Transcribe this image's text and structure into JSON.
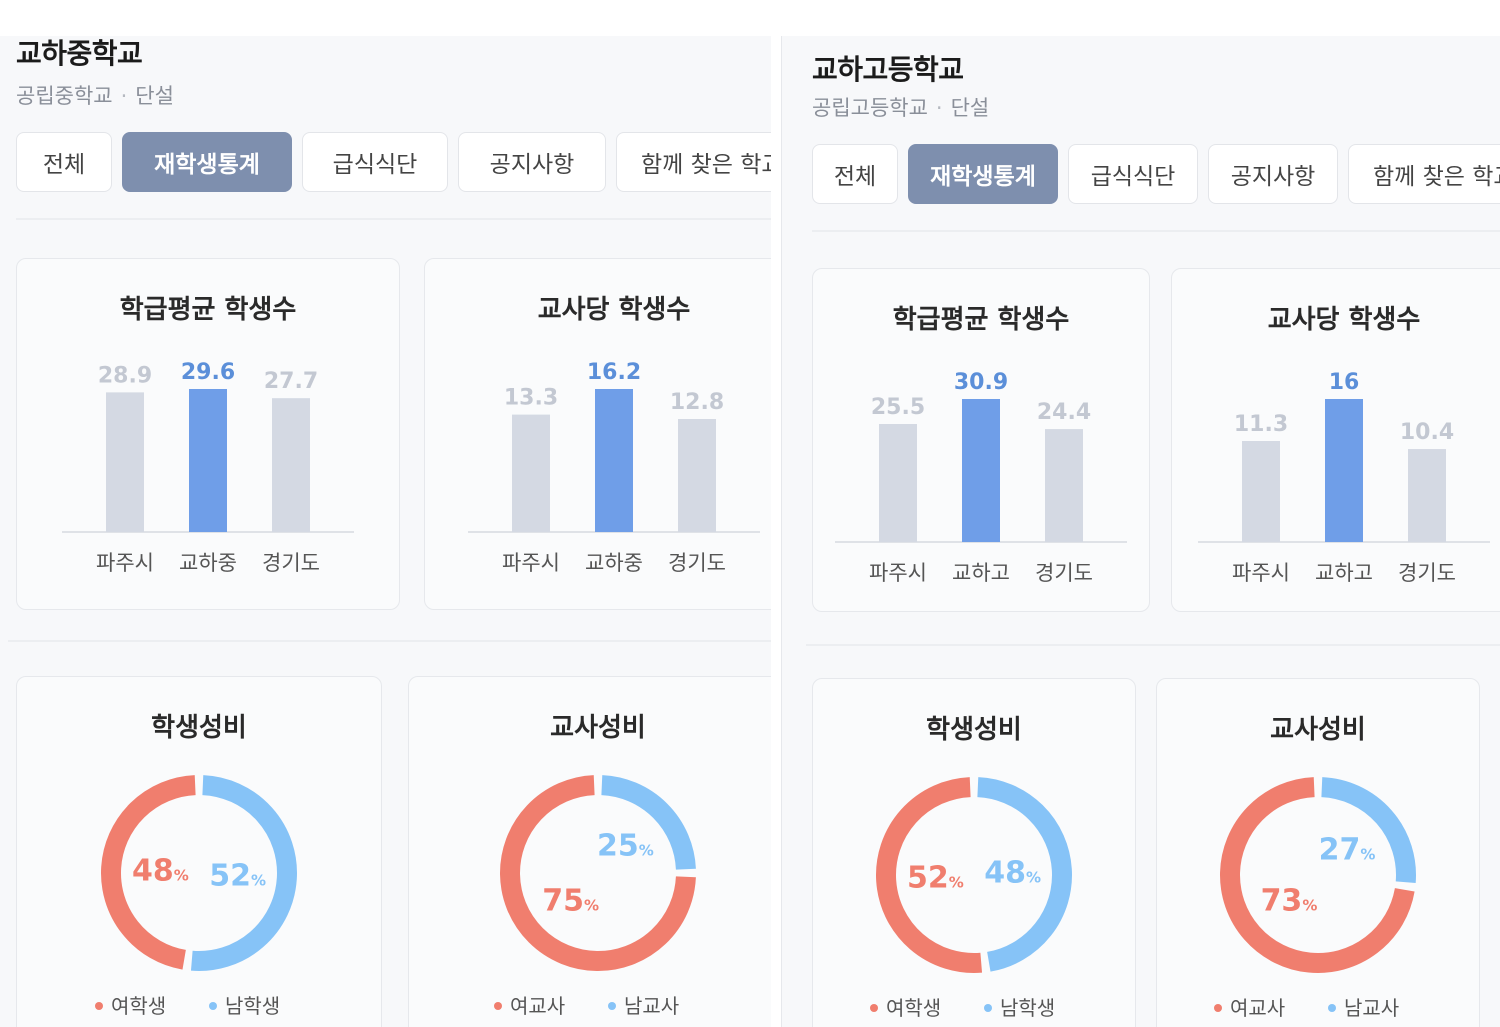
{
  "panels": [
    {
      "school_name": "교하중학교",
      "school_type": "공립중학교",
      "separator": "·",
      "school_gender": "단설",
      "tabs": [
        {
          "label": "전체",
          "active": false
        },
        {
          "label": "재학생통계",
          "active": true
        },
        {
          "label": "급식식단",
          "active": false
        },
        {
          "label": "공지사항",
          "active": false
        },
        {
          "label": "함께 찾은 학교",
          "active": false
        }
      ],
      "bar_cards": [
        {
          "title": "학급평균 학생수",
          "categories": [
            "파주시",
            "교하중",
            "경기도"
          ],
          "values": [
            28.9,
            29.6,
            27.7
          ],
          "value_labels": [
            "28.9",
            "29.6",
            "27.7"
          ],
          "highlight_index": 1
        },
        {
          "title": "교사당 학생수",
          "categories": [
            "파주시",
            "교하중",
            "경기도"
          ],
          "values": [
            13.3,
            16.2,
            12.8
          ],
          "value_labels": [
            "13.3",
            "16.2",
            "12.8"
          ],
          "highlight_index": 1
        }
      ],
      "donut_cards": [
        {
          "title": "학생성비",
          "female_pct": 48,
          "male_pct": 52,
          "female_label": "여학생",
          "male_label": "남학생"
        },
        {
          "title": "교사성비",
          "female_pct": 75,
          "male_pct": 25,
          "female_label": "여교사",
          "male_label": "남교사"
        }
      ]
    },
    {
      "school_name": "교하고등학교",
      "school_type": "공립고등학교",
      "separator": "·",
      "school_gender": "단설",
      "tabs": [
        {
          "label": "전체",
          "active": false
        },
        {
          "label": "재학생통계",
          "active": true
        },
        {
          "label": "급식식단",
          "active": false
        },
        {
          "label": "공지사항",
          "active": false
        },
        {
          "label": "함께 찾은 학교",
          "active": false
        }
      ],
      "bar_cards": [
        {
          "title": "학급평균 학생수",
          "categories": [
            "파주시",
            "교하고",
            "경기도"
          ],
          "values": [
            25.5,
            30.9,
            24.4
          ],
          "value_labels": [
            "25.5",
            "30.9",
            "24.4"
          ],
          "highlight_index": 1
        },
        {
          "title": "교사당 학생수",
          "categories": [
            "파주시",
            "교하고",
            "경기도"
          ],
          "values": [
            11.3,
            16,
            10.4
          ],
          "value_labels": [
            "11.3",
            "16",
            "10.4"
          ],
          "highlight_index": 1
        }
      ],
      "donut_cards": [
        {
          "title": "학생성비",
          "female_pct": 52,
          "male_pct": 48,
          "female_label": "여학생",
          "male_label": "남학생"
        },
        {
          "title": "교사성비",
          "female_pct": 73,
          "male_pct": 27,
          "female_label": "여교사",
          "male_label": "남교사"
        }
      ]
    }
  ],
  "percent_sign": "%",
  "colors": {
    "bar_highlight": "#6f9ee8",
    "bar_normal": "#d4d9e3",
    "value_highlight": "#5b8fd9",
    "value_normal": "#c3c8d2",
    "female": "#f07e6e",
    "male": "#86c3f7",
    "tab_active_bg": "#7e8fae"
  },
  "chart_data": [
    {
      "type": "bar",
      "title": "학급평균 학생수",
      "categories": [
        "파주시",
        "교하중",
        "경기도"
      ],
      "values": [
        28.9,
        29.6,
        27.7
      ]
    },
    {
      "type": "bar",
      "title": "교사당 학생수",
      "categories": [
        "파주시",
        "교하중",
        "경기도"
      ],
      "values": [
        13.3,
        16.2,
        12.8
      ]
    },
    {
      "type": "pie",
      "title": "학생성비",
      "categories": [
        "여학생",
        "남학생"
      ],
      "values": [
        48,
        52
      ]
    },
    {
      "type": "pie",
      "title": "교사성비",
      "categories": [
        "여교사",
        "남교사"
      ],
      "values": [
        75,
        25
      ]
    },
    {
      "type": "bar",
      "title": "학급평균 학생수",
      "categories": [
        "파주시",
        "교하고",
        "경기도"
      ],
      "values": [
        25.5,
        30.9,
        24.4
      ]
    },
    {
      "type": "bar",
      "title": "교사당 학생수",
      "categories": [
        "파주시",
        "교하고",
        "경기도"
      ],
      "values": [
        11.3,
        16,
        10.4
      ]
    },
    {
      "type": "pie",
      "title": "학생성비",
      "categories": [
        "여학생",
        "남학생"
      ],
      "values": [
        52,
        48
      ]
    },
    {
      "type": "pie",
      "title": "교사성비",
      "categories": [
        "여교사",
        "남교사"
      ],
      "values": [
        73,
        27
      ]
    }
  ]
}
